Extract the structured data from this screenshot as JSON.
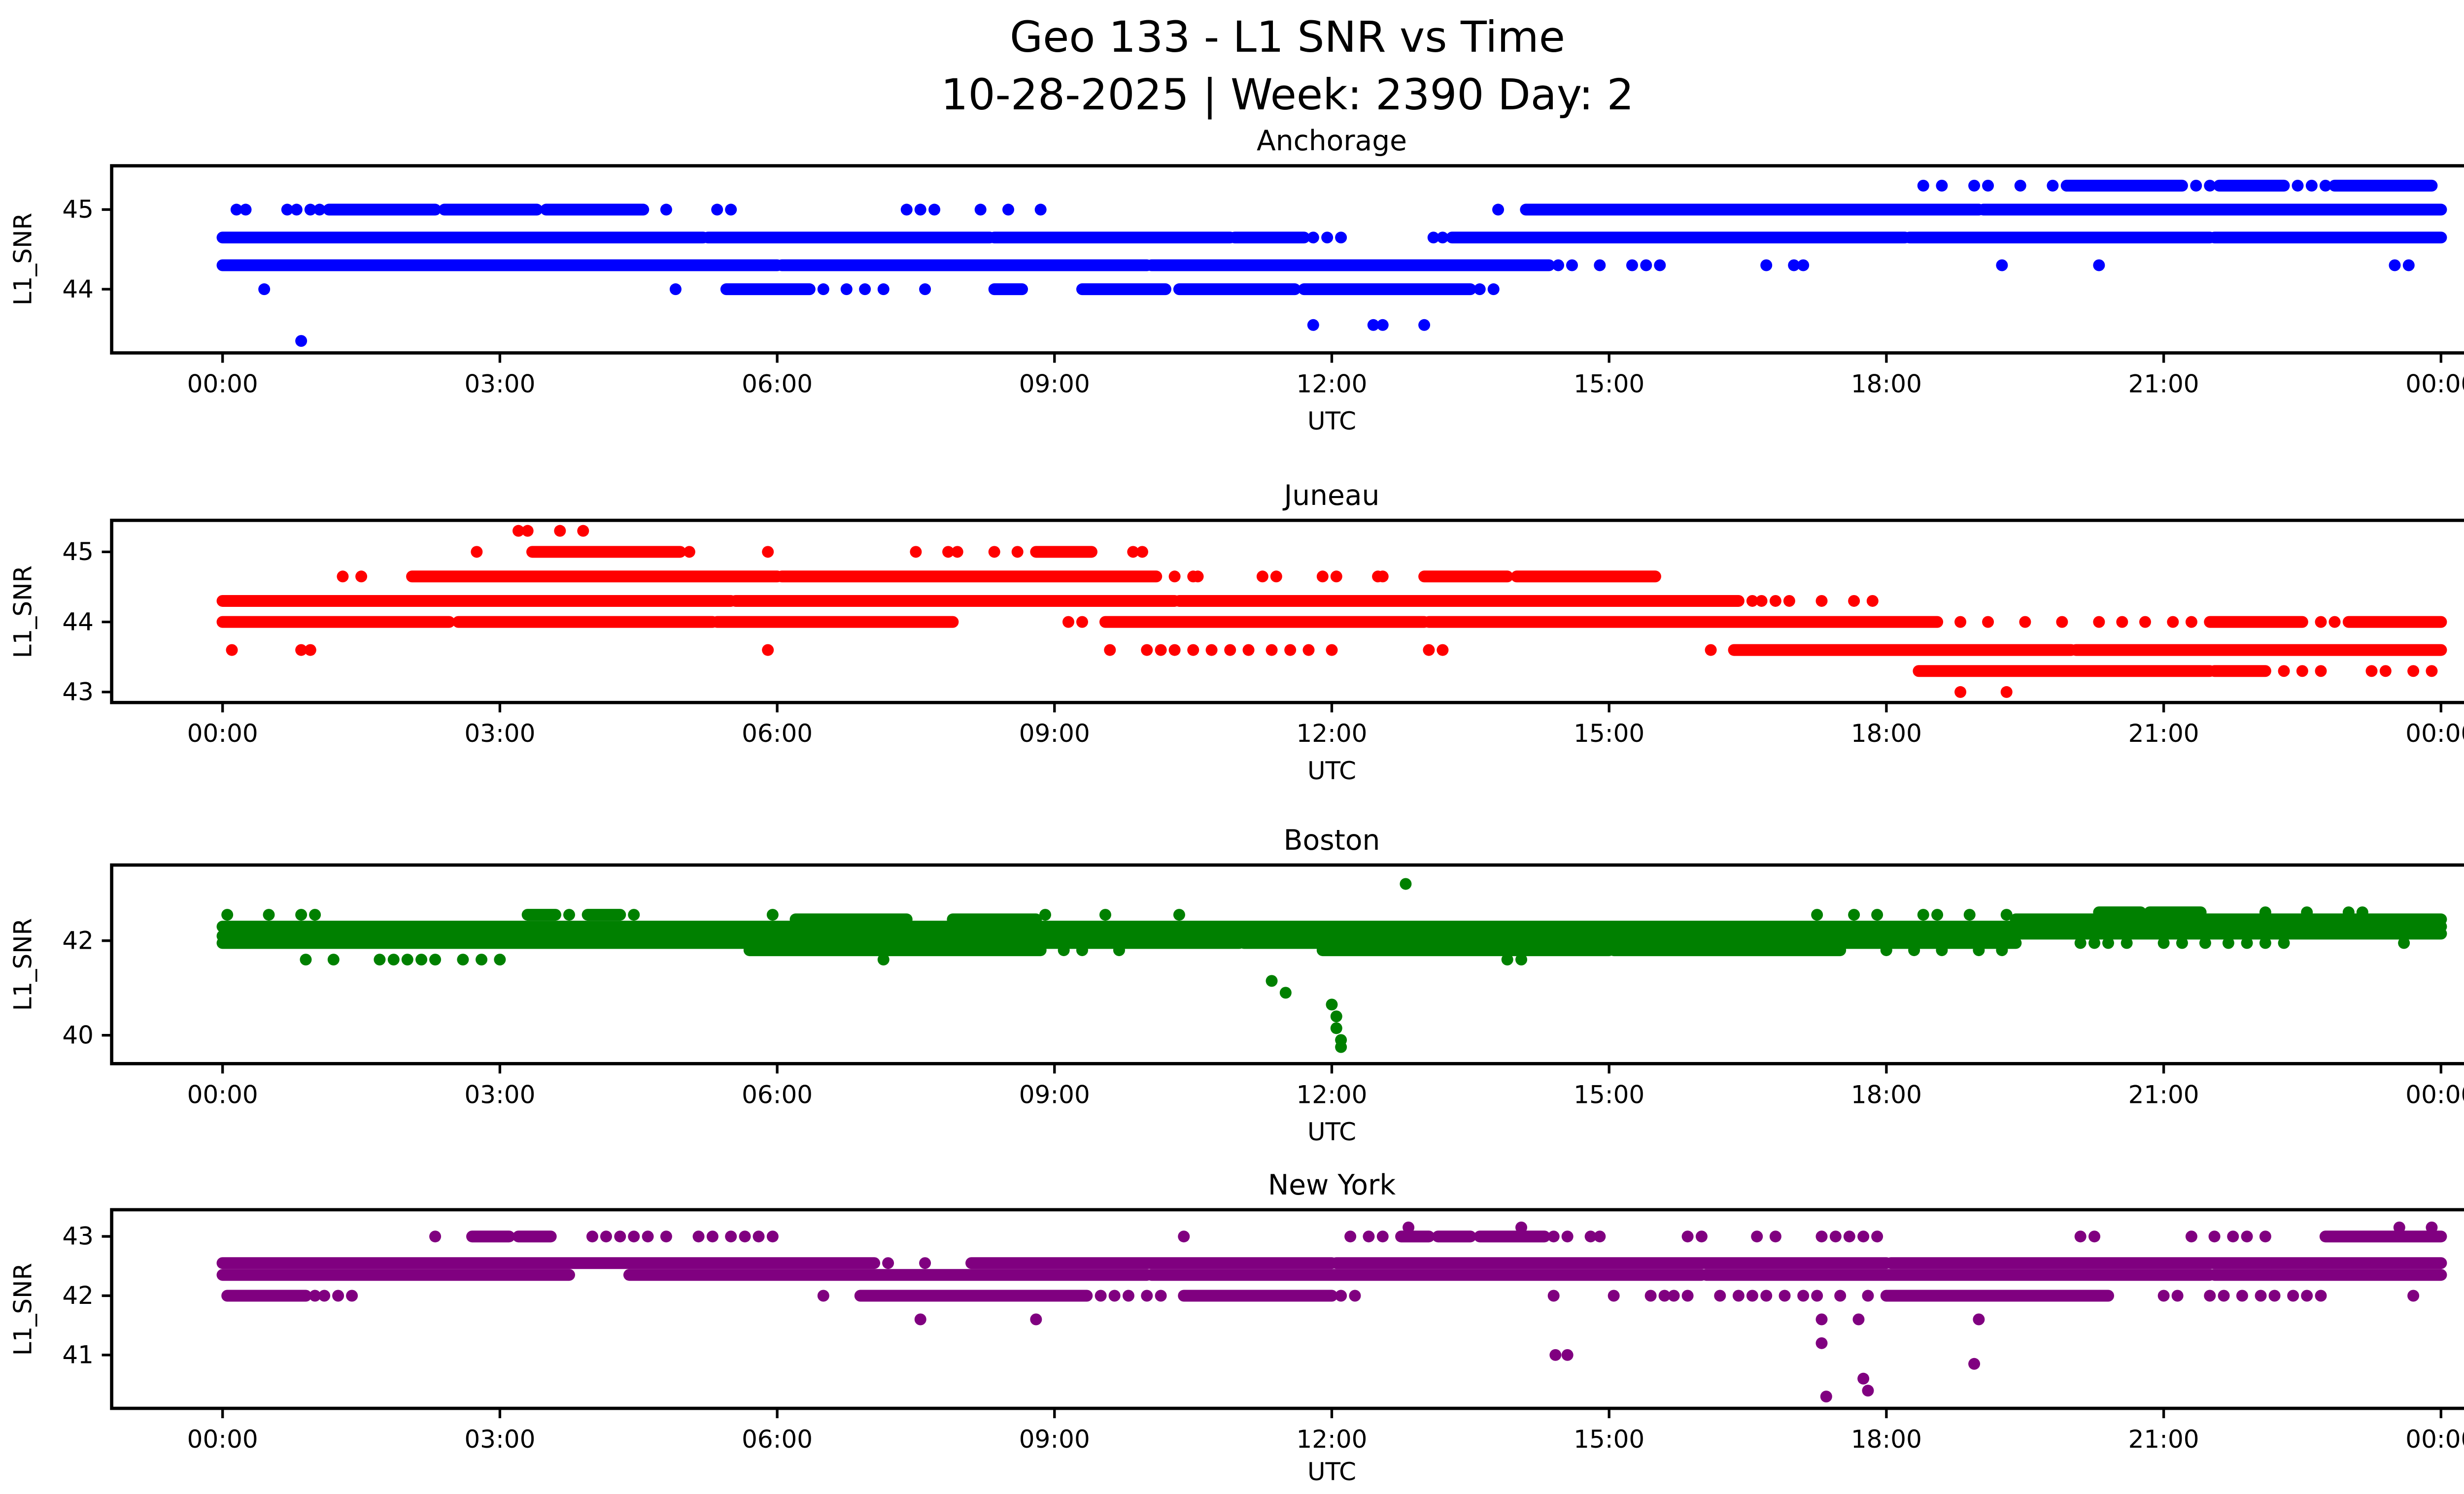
{
  "figure": {
    "suptitle_line1": "Geo 133 - L1 SNR vs Time",
    "suptitle_line2": "10-28-2025 | Week: 2390 Day: 2",
    "background_color": "#ffffff",
    "spine_color": "#000000"
  },
  "x_axis": {
    "label": "UTC",
    "xlim": [
      -1.2,
      25.2
    ],
    "tick_hours": [
      0,
      3,
      6,
      9,
      12,
      15,
      18,
      21,
      24
    ],
    "tick_labels": [
      "00:00",
      "03:00",
      "06:00",
      "09:00",
      "12:00",
      "15:00",
      "18:00",
      "21:00",
      "00:00"
    ]
  },
  "y_axis": {
    "label": "L1_SNR"
  },
  "chart_data": [
    {
      "type": "scatter",
      "name": "Anchorage",
      "color": "#0000ff",
      "ylim": [
        43.2,
        45.55
      ],
      "yticks": [
        44,
        45
      ],
      "bands": [
        [
          45.3,
          19.95,
          21.2
        ],
        [
          45.3,
          21.6,
          22.3
        ],
        [
          45.3,
          22.85,
          23.9
        ],
        [
          45.0,
          1.15,
          2.3
        ],
        [
          45.0,
          2.4,
          3.4
        ],
        [
          45.0,
          3.5,
          4.55
        ],
        [
          45.0,
          14.1,
          19.0
        ],
        [
          45.0,
          19.05,
          24.0
        ],
        [
          44.65,
          0.0,
          5.2
        ],
        [
          44.65,
          5.25,
          8.3
        ],
        [
          44.65,
          8.35,
          10.9
        ],
        [
          44.65,
          10.95,
          11.7
        ],
        [
          44.65,
          13.3,
          18.2
        ],
        [
          44.65,
          18.25,
          21.5
        ],
        [
          44.65,
          21.55,
          24.0
        ],
        [
          44.3,
          0.0,
          6.0
        ],
        [
          44.3,
          6.05,
          10.0
        ],
        [
          44.3,
          10.05,
          14.35
        ],
        [
          44.0,
          5.45,
          6.35
        ],
        [
          44.0,
          8.35,
          8.65
        ],
        [
          44.0,
          9.3,
          10.2
        ],
        [
          44.0,
          10.35,
          11.6
        ],
        [
          44.0,
          11.7,
          13.5
        ]
      ],
      "points": [
        {
          "v": 45.3,
          "t": [
            18.4,
            18.6,
            18.95,
            19.1,
            19.45,
            19.8,
            21.35,
            21.5,
            22.45,
            22.6,
            22.75
          ]
        },
        {
          "v": 45.0,
          "t": [
            0.15,
            0.25,
            0.7,
            0.8,
            0.95,
            1.05,
            4.8,
            5.35,
            5.5,
            7.4,
            7.55,
            7.7,
            8.2,
            8.5,
            8.85,
            13.8
          ]
        },
        {
          "v": 44.65,
          "t": [
            11.8,
            11.95,
            12.1,
            13.1,
            13.2
          ]
        },
        {
          "v": 44.3,
          "t": [
            14.45,
            14.6,
            14.9,
            15.25,
            15.4,
            15.55,
            16.7,
            17.0,
            17.1,
            19.25,
            20.3,
            23.5,
            23.65
          ]
        },
        {
          "v": 44.0,
          "t": [
            0.45,
            4.9,
            6.5,
            6.75,
            6.95,
            7.15,
            7.6,
            13.6,
            13.75
          ]
        },
        {
          "v": 43.55,
          "t": [
            11.8,
            12.45,
            12.55,
            13.0
          ]
        },
        {
          "v": 43.35,
          "t": [
            0.85
          ]
        }
      ]
    },
    {
      "type": "scatter",
      "name": "Juneau",
      "color": "#ff0000",
      "ylim": [
        42.85,
        45.45
      ],
      "yticks": [
        43,
        44,
        45
      ],
      "bands": [
        [
          45.0,
          3.35,
          4.95
        ],
        [
          45.0,
          8.8,
          9.4
        ],
        [
          44.65,
          2.05,
          6.0
        ],
        [
          44.65,
          6.05,
          10.1
        ],
        [
          44.65,
          13.0,
          13.9
        ],
        [
          44.65,
          14.0,
          15.5
        ],
        [
          44.3,
          0.0,
          5.5
        ],
        [
          44.3,
          5.55,
          10.3
        ],
        [
          44.3,
          10.35,
          16.4
        ],
        [
          44.0,
          0.0,
          2.45
        ],
        [
          44.0,
          2.55,
          5.3
        ],
        [
          44.0,
          5.35,
          7.9
        ],
        [
          44.0,
          9.55,
          13.0
        ],
        [
          44.0,
          13.05,
          18.55
        ],
        [
          44.0,
          21.5,
          22.5
        ],
        [
          44.0,
          23.0,
          24.0
        ],
        [
          43.6,
          16.35,
          20.0
        ],
        [
          43.6,
          20.05,
          24.0
        ],
        [
          43.3,
          18.35,
          21.5
        ],
        [
          43.3,
          21.55,
          22.1
        ]
      ],
      "points": [
        {
          "v": 45.3,
          "t": [
            3.2,
            3.3,
            3.65,
            3.9
          ]
        },
        {
          "v": 45.0,
          "t": [
            2.75,
            5.05,
            5.9,
            7.5,
            7.85,
            7.95,
            8.35,
            8.6,
            9.85,
            9.95
          ]
        },
        {
          "v": 44.65,
          "t": [
            1.3,
            1.5,
            10.3,
            10.5,
            10.55,
            11.25,
            11.4,
            11.9,
            12.05,
            12.5,
            12.55
          ]
        },
        {
          "v": 44.3,
          "t": [
            16.55,
            16.65,
            16.8,
            16.95,
            17.3,
            17.65,
            17.85
          ]
        },
        {
          "v": 44.0,
          "t": [
            9.15,
            9.3,
            18.8,
            19.1,
            19.5,
            19.9,
            20.3,
            20.55,
            20.8,
            21.1,
            21.3,
            22.7,
            22.85
          ]
        },
        {
          "v": 43.6,
          "t": [
            0.1,
            0.85,
            0.95,
            5.9,
            9.6,
            10.0,
            10.15,
            10.3,
            10.5,
            10.7,
            10.9,
            11.1,
            11.35,
            11.55,
            11.75,
            12.0,
            13.05,
            13.2,
            16.1
          ]
        },
        {
          "v": 43.3,
          "t": [
            22.3,
            22.5,
            22.7,
            23.25,
            23.4,
            23.7,
            23.9
          ]
        },
        {
          "v": 43.0,
          "t": [
            18.8,
            19.3
          ]
        }
      ]
    },
    {
      "type": "scatter",
      "name": "Boston",
      "color": "#008000",
      "ylim": [
        39.4,
        43.6
      ],
      "yticks": [
        40,
        42
      ],
      "bands": [
        [
          42.6,
          20.3,
          20.75
        ],
        [
          42.6,
          20.85,
          21.4
        ],
        [
          42.55,
          3.3,
          3.6
        ],
        [
          42.55,
          3.95,
          4.3
        ],
        [
          42.45,
          6.2,
          7.4
        ],
        [
          42.45,
          7.9,
          8.8
        ],
        [
          42.45,
          19.4,
          24.0
        ],
        [
          42.3,
          0.0,
          24.0
        ],
        [
          42.15,
          19.4,
          24.0
        ],
        [
          42.1,
          0.0,
          19.4
        ],
        [
          41.95,
          0.0,
          11.0
        ],
        [
          41.95,
          11.05,
          19.4
        ],
        [
          41.8,
          5.7,
          7.1
        ],
        [
          41.8,
          7.15,
          8.85
        ],
        [
          41.8,
          11.9,
          15.0
        ],
        [
          41.8,
          15.05,
          17.5
        ]
      ],
      "points": [
        {
          "v": 43.2,
          "t": [
            12.8
          ]
        },
        {
          "v": 42.6,
          "t": [
            22.1,
            22.55,
            23.0,
            23.15
          ]
        },
        {
          "v": 42.55,
          "t": [
            0.05,
            0.5,
            0.85,
            1.0,
            3.75,
            4.45,
            5.95,
            8.9,
            9.55,
            10.35,
            17.25,
            17.65,
            17.9,
            18.4,
            18.55,
            18.9,
            19.3
          ]
        },
        {
          "v": 41.95,
          "t": [
            20.1,
            20.25,
            20.4,
            20.6,
            21.0,
            21.2,
            21.45,
            21.7,
            21.9,
            22.1,
            22.3,
            23.6
          ]
        },
        {
          "v": 41.8,
          "t": [
            9.1,
            9.3,
            9.7,
            18.0,
            18.3,
            18.6,
            19.0,
            19.25
          ]
        },
        {
          "v": 41.6,
          "t": [
            0.9,
            1.2,
            1.7,
            1.85,
            2.0,
            2.15,
            2.3,
            2.6,
            2.8,
            3.0,
            7.15,
            13.9,
            14.05
          ]
        },
        {
          "v": 41.15,
          "t": [
            11.35
          ]
        },
        {
          "v": 40.9,
          "t": [
            11.5
          ]
        },
        {
          "v": 40.65,
          "t": [
            12.0
          ]
        },
        {
          "v": 40.4,
          "t": [
            12.05
          ]
        },
        {
          "v": 40.15,
          "t": [
            12.05
          ]
        },
        {
          "v": 39.9,
          "t": [
            12.1
          ]
        },
        {
          "v": 39.75,
          "t": [
            12.1
          ]
        }
      ]
    },
    {
      "type": "scatter",
      "name": "New York",
      "color": "#800080",
      "ylim": [
        40.1,
        43.45
      ],
      "yticks": [
        41,
        42,
        43
      ],
      "bands": [
        [
          43.0,
          2.7,
          3.1
        ],
        [
          43.0,
          3.2,
          3.55
        ],
        [
          43.0,
          12.75,
          13.05
        ],
        [
          43.0,
          13.15,
          13.5
        ],
        [
          43.0,
          13.6,
          14.3
        ],
        [
          43.0,
          22.75,
          24.0
        ],
        [
          42.55,
          0.0,
          7.05
        ],
        [
          42.55,
          8.1,
          12.0
        ],
        [
          42.55,
          12.05,
          18.0
        ],
        [
          42.55,
          18.05,
          24.0
        ],
        [
          42.35,
          0.0,
          3.75
        ],
        [
          42.35,
          4.4,
          10.0
        ],
        [
          42.35,
          10.05,
          16.0
        ],
        [
          42.35,
          16.05,
          21.5
        ],
        [
          42.35,
          21.55,
          24.0
        ],
        [
          42.0,
          0.05,
          0.9
        ],
        [
          42.0,
          6.9,
          9.35
        ],
        [
          42.0,
          10.4,
          12.0
        ],
        [
          42.0,
          18.0,
          20.4
        ]
      ],
      "points": [
        {
          "v": 43.15,
          "t": [
            12.83,
            14.05,
            23.55,
            23.9
          ]
        },
        {
          "v": 43.0,
          "t": [
            2.3,
            4.0,
            4.15,
            4.3,
            4.45,
            4.6,
            4.8,
            5.15,
            5.3,
            5.5,
            5.65,
            5.8,
            5.95,
            10.4,
            12.2,
            12.4,
            12.55,
            14.4,
            14.55,
            14.8,
            14.9,
            15.85,
            16.0,
            16.6,
            16.8,
            17.3,
            17.45,
            17.6,
            17.75,
            17.9,
            20.1,
            20.25,
            21.3,
            21.55,
            21.75,
            21.9,
            22.1
          ]
        },
        {
          "v": 42.55,
          "t": [
            7.2,
            7.6
          ]
        },
        {
          "v": 42.0,
          "t": [
            1.0,
            1.1,
            1.25,
            1.4,
            6.5,
            9.5,
            9.65,
            9.8,
            10.0,
            10.15,
            12.1,
            12.25,
            14.4,
            15.05,
            15.45,
            15.6,
            15.7,
            15.85,
            16.2,
            16.4,
            16.55,
            16.7,
            16.9,
            17.1,
            17.25,
            17.5,
            17.8,
            21.0,
            21.15,
            21.5,
            21.65,
            21.85,
            22.05,
            22.2,
            22.4,
            22.55,
            22.7,
            23.7
          ]
        },
        {
          "v": 41.6,
          "t": [
            7.55,
            8.8,
            17.3,
            17.7,
            19.0
          ]
        },
        {
          "v": 41.2,
          "t": [
            17.3
          ]
        },
        {
          "v": 41.0,
          "t": [
            14.42,
            14.55
          ]
        },
        {
          "v": 40.85,
          "t": [
            18.95
          ]
        },
        {
          "v": 40.6,
          "t": [
            17.75
          ]
        },
        {
          "v": 40.4,
          "t": [
            17.8
          ]
        },
        {
          "v": 40.3,
          "t": [
            17.35
          ]
        }
      ]
    }
  ]
}
